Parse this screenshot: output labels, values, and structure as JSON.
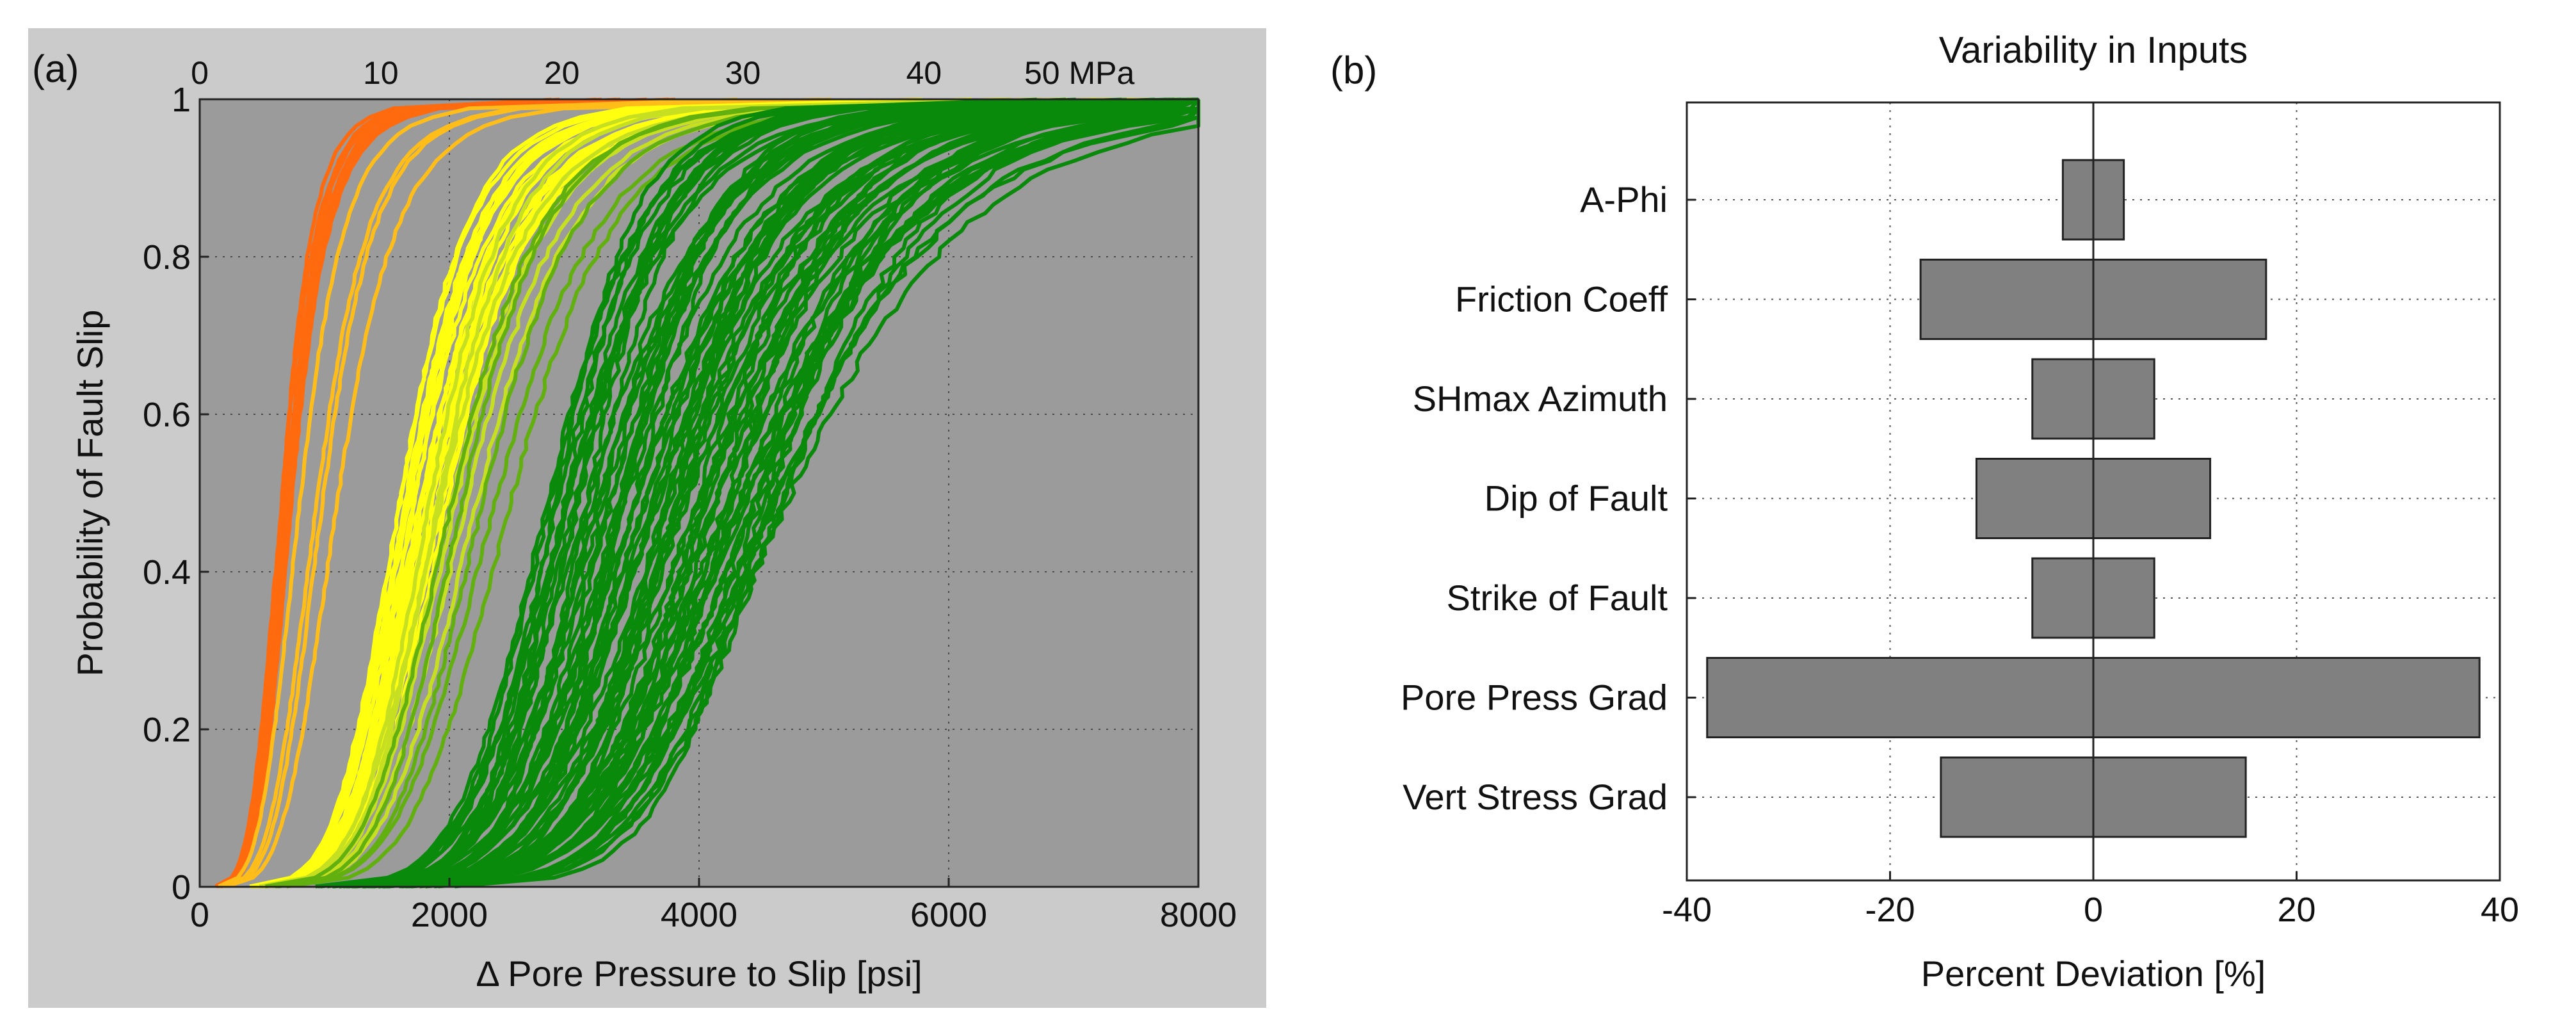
{
  "chart_data": [
    {
      "type": "line",
      "panel_label": "(a)",
      "xlabel": "Δ Pore Pressure to Slip [psi]",
      "ylabel": "Probability of Fault Slip",
      "xlim": [
        0,
        8000
      ],
      "ylim": [
        0,
        1
      ],
      "x_ticks": [
        "0",
        "2000",
        "4000",
        "6000",
        "8000"
      ],
      "y_ticks": [
        "0",
        "0.2",
        "0.4",
        "0.6",
        "0.8",
        "1"
      ],
      "top_axis_ticks": [
        "0",
        "10",
        "20",
        "30",
        "40",
        "50 MPa"
      ],
      "top_axis_values_mpa": [
        0,
        10,
        20,
        30,
        40,
        50
      ],
      "psi_per_mpa": 145.04,
      "grid": true,
      "series": [
        {
          "name": "orange",
          "color": "#ff6a0f",
          "count": 10,
          "median_psi": [
            650,
            780
          ],
          "spread": [
            0.3,
            0.38
          ]
        },
        {
          "name": "amber",
          "color": "#ffbd1a",
          "count": 4,
          "median_psi": [
            820,
            1120
          ],
          "spread": [
            0.33,
            0.4
          ]
        },
        {
          "name": "yellow",
          "color": "#ffff10",
          "count": 22,
          "median_psi": [
            1600,
            2000
          ],
          "spread": [
            0.28,
            0.34
          ]
        },
        {
          "name": "yellow-green",
          "color": "#c6e021",
          "count": 7,
          "median_psi": [
            1850,
            2200
          ],
          "spread": [
            0.28,
            0.32
          ]
        },
        {
          "name": "light-green",
          "color": "#62b00f",
          "count": 5,
          "median_psi": [
            2000,
            2550
          ],
          "spread": [
            0.28,
            0.32
          ]
        },
        {
          "name": "green",
          "color": "#0a8a0a",
          "count": 70,
          "median_psi": [
            2800,
            4750
          ],
          "spread": [
            0.18,
            0.27
          ]
        }
      ]
    },
    {
      "type": "bar",
      "orientation": "horizontal",
      "panel_label": "(b)",
      "title": "Variability in Inputs",
      "xlabel": "Percent Deviation [%]",
      "xlim": [
        -40,
        40
      ],
      "x_ticks": [
        "-40",
        "-20",
        "0",
        "20",
        "40"
      ],
      "categories": [
        "A-Phi",
        "Friction Coeff",
        "SHmax Azimuth",
        "Dip of Fault",
        "Strike of Fault",
        "Pore Press Grad",
        "Vert Stress Grad"
      ],
      "low": [
        -3,
        -17,
        -6,
        -11.5,
        -6,
        -38,
        -15
      ],
      "high": [
        3,
        17,
        6,
        11.5,
        6,
        38,
        15
      ],
      "grid": true
    }
  ],
  "colors": {
    "plot_bg": "#9b9b9b",
    "panel_bg": "#cbcbcb",
    "bar_fill": "#808080",
    "bar_edge": "#222222"
  }
}
